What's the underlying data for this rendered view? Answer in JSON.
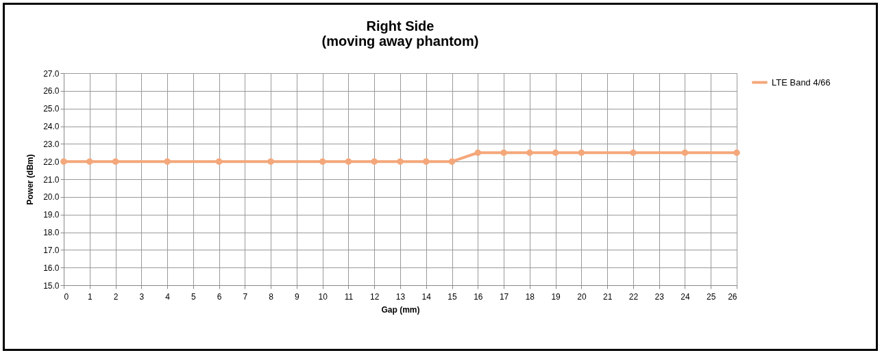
{
  "chart_data": {
    "type": "line",
    "title": [
      "Right Side",
      "(moving away phantom)"
    ],
    "xlabel": "Gap (mm)",
    "ylabel": "Power (dBm)",
    "x": [
      0,
      1,
      2,
      4,
      6,
      8,
      10,
      11,
      12,
      13,
      14,
      15,
      16,
      17,
      18,
      19,
      20,
      22,
      24,
      26
    ],
    "series": [
      {
        "name": "LTE Band 4/66",
        "color": "#f4a77a",
        "values": [
          22.0,
          22.0,
          22.0,
          22.0,
          22.0,
          22.0,
          22.0,
          22.0,
          22.0,
          22.0,
          22.0,
          22.0,
          22.5,
          22.5,
          22.5,
          22.5,
          22.5,
          22.5,
          22.5,
          22.5
        ]
      }
    ],
    "xlim": [
      0,
      26
    ],
    "xticks": [
      0,
      1,
      2,
      3,
      4,
      5,
      6,
      7,
      8,
      9,
      10,
      11,
      12,
      13,
      14,
      15,
      16,
      17,
      18,
      19,
      20,
      21,
      22,
      23,
      24,
      25,
      26
    ],
    "ylim": [
      15,
      27
    ],
    "yticks": [
      {
        "value": 15,
        "label": "15.0"
      },
      {
        "value": 16,
        "label": "16.0"
      },
      {
        "value": 17,
        "label": "17.0"
      },
      {
        "value": 18,
        "label": "18.0"
      },
      {
        "value": 19,
        "label": "19.0"
      },
      {
        "value": 20,
        "label": "20.0"
      },
      {
        "value": 21,
        "label": "21.0"
      },
      {
        "value": 22,
        "label": "22.0"
      },
      {
        "value": 23,
        "label": "23.0"
      },
      {
        "value": 24,
        "label": "24.0"
      },
      {
        "value": 25,
        "label": "25.0"
      },
      {
        "value": 26,
        "label": "26.0"
      },
      {
        "value": 27,
        "label": "27.0"
      }
    ],
    "grid": true,
    "legend": "right",
    "marker": "circle",
    "line_style": "solid"
  }
}
